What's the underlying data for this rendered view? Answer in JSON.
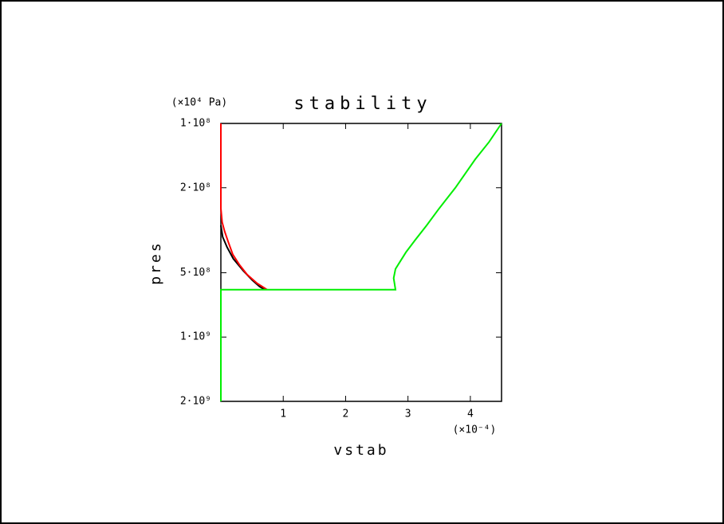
{
  "chart_data": {
    "type": "line",
    "title": "stability",
    "xlabel": "vstab",
    "ylabel": "pres",
    "x_unit_label": "(×10⁻⁴)",
    "y_unit_label": "(×10⁴ Pa)",
    "xlim": [
      0,
      4.5
    ],
    "xticks": [
      1,
      2,
      3,
      4
    ],
    "ylim": [
      100000000,
      2000000000
    ],
    "ylog": true,
    "yreverse": true,
    "yticks": [
      {
        "value": 100000000,
        "label": "1·10⁸"
      },
      {
        "value": 200000000,
        "label": "2·10⁸"
      },
      {
        "value": 500000000,
        "label": "5·10⁸"
      },
      {
        "value": 1000000000,
        "label": "1·10⁹"
      },
      {
        "value": 2000000000,
        "label": "2·10⁹"
      }
    ],
    "series": [
      {
        "color": "#000000",
        "x": [
          0,
          0.03,
          0.1,
          0.2,
          0.36,
          0.5,
          0.62,
          0.7
        ],
        "values": [
          300000000,
          340000000,
          380000000,
          430000000,
          490000000,
          540000000,
          580000000,
          600000000
        ]
      },
      {
        "color": "#ff0000",
        "x": [
          0,
          0,
          0.02,
          0.06,
          0.12,
          0.19,
          0.3,
          0.42,
          0.58,
          0.74
        ],
        "values": [
          100000000,
          250000000,
          290000000,
          320000000,
          360000000,
          410000000,
          460000000,
          510000000,
          560000000,
          600000000
        ]
      },
      {
        "color": "#00ee00",
        "x": [
          0,
          0,
          2.8,
          2.77,
          2.8,
          2.86,
          2.97,
          3.12,
          3.3,
          3.5,
          3.76,
          4.08,
          4.3,
          4.5
        ],
        "values": [
          2000000000,
          600000000,
          600000000,
          530000000,
          480000000,
          450000000,
          400000000,
          350000000,
          300000000,
          250000000,
          200000000,
          147000000,
          122000000,
          100000000
        ]
      }
    ]
  }
}
